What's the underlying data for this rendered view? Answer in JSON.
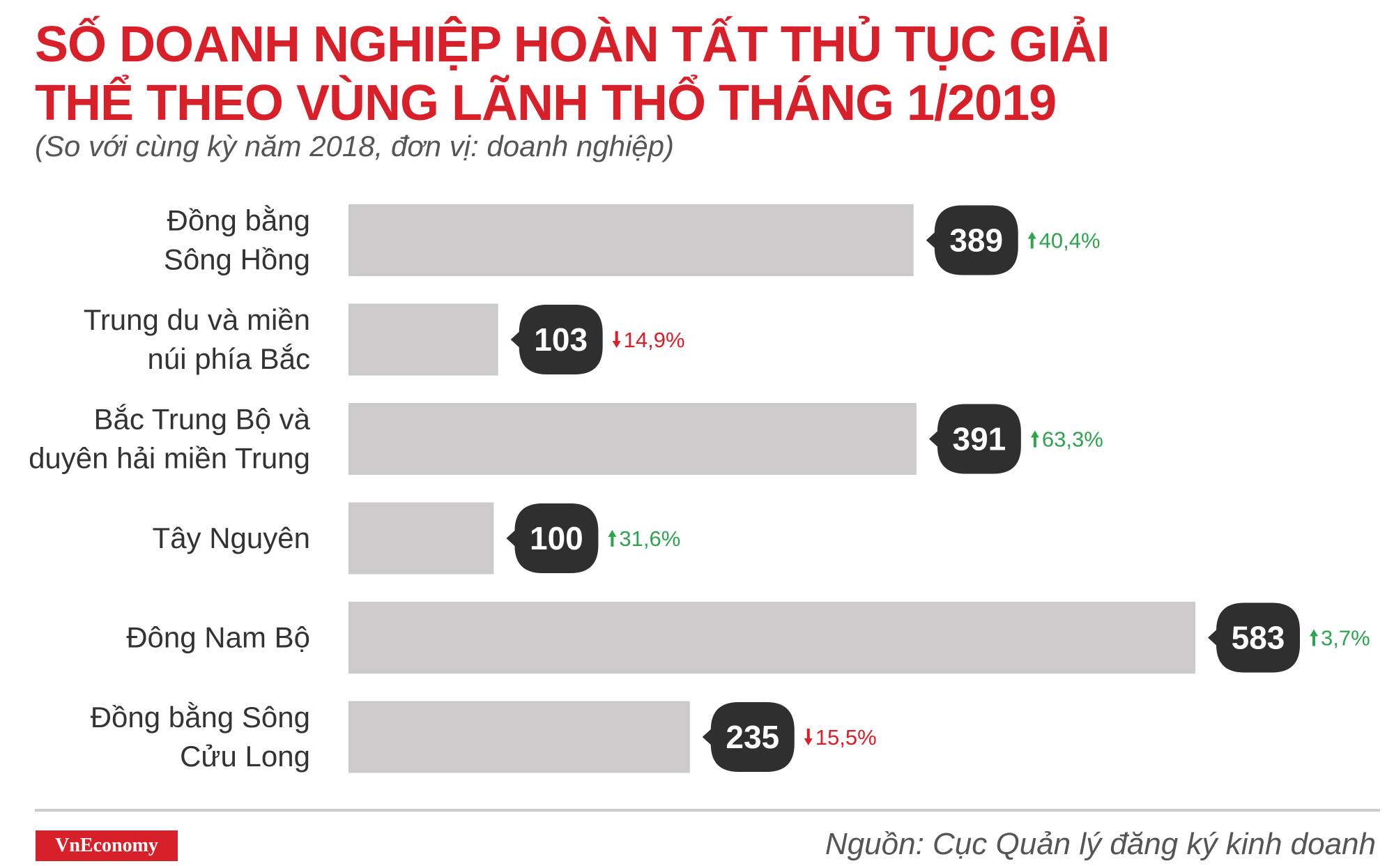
{
  "header": {
    "title": "SỐ DOANH NGHIỆP HOÀN TẤT THỦ TỤC GIẢI THỂ THEO VÙNG LÃNH THỔ THÁNG 1/2019",
    "subtitle": "(So với cùng kỳ năm 2018, đơn vị: doanh nghiệp)"
  },
  "footer": {
    "logo": "VnEconomy",
    "source": "Nguồn: Cục Quản lý đăng ký kinh doanh"
  },
  "colors": {
    "title": "#d8202a",
    "bar": "#cccacb",
    "badge": "#2f2f2f",
    "up": "#2ea44f",
    "down": "#d8202a"
  },
  "chart_data": {
    "type": "bar",
    "orientation": "horizontal",
    "categories": [
      [
        "Đồng bằng",
        "Sông Hồng"
      ],
      [
        "Trung du và miền",
        "núi phía Bắc"
      ],
      [
        "Bắc Trung Bộ và",
        "duyên hải miền Trung"
      ],
      [
        "Tây Nguyên"
      ],
      [
        "Đông Nam Bộ"
      ],
      [
        "Đồng bằng Sông",
        "Cửu Long"
      ]
    ],
    "values": [
      389,
      103,
      391,
      100,
      583,
      235
    ],
    "changes": [
      {
        "text": "40,4%",
        "direction": "up"
      },
      {
        "text": "14,9%",
        "direction": "down"
      },
      {
        "text": "63,3%",
        "direction": "up"
      },
      {
        "text": "31,6%",
        "direction": "up"
      },
      {
        "text": "3,7%",
        "direction": "up"
      },
      {
        "text": "15,5%",
        "direction": "down"
      }
    ],
    "xlim": [
      0,
      583
    ],
    "grid": false,
    "legend": "none"
  }
}
